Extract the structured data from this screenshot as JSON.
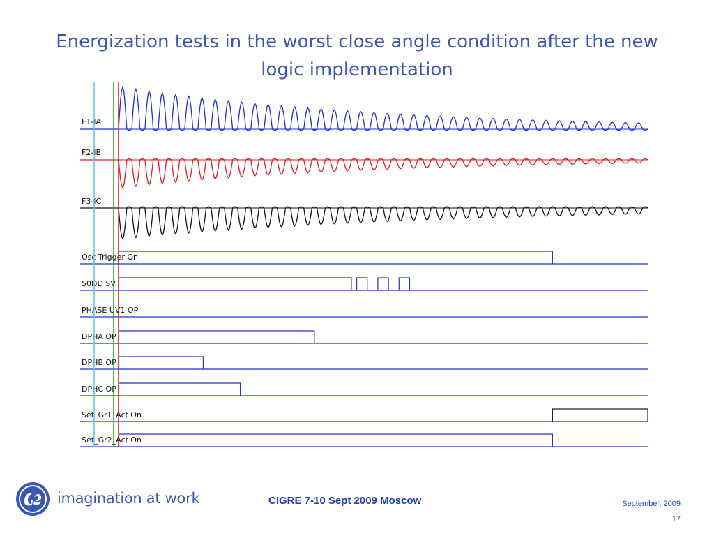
{
  "slide": {
    "title_line1": "Energization tests in the worst close angle condition after the new",
    "title_line2": "logic implementation",
    "tagline": "imagination at work",
    "footer": "CIGRE 7-10 Sept 2009 Moscow",
    "date": "September,  2009",
    "page": "17"
  },
  "colors": {
    "title": "#3a57b4",
    "digital": "#2233cc",
    "ia": "#1f2ecc",
    "ib": "#e21b1b",
    "ic": "#111111",
    "cursor_cyan": "#55c8e8",
    "cursor_green": "#11aa11",
    "cursor_red": "#ee1111"
  },
  "chart_data": {
    "type": "line",
    "title": "",
    "xlabel": "",
    "ylabel": "",
    "analog_series": [
      {
        "name": "F1-IA",
        "color": "#1f2ecc",
        "polarity": "positive",
        "peak_start": 1.0,
        "peak_end": 0.15,
        "cycles": 40
      },
      {
        "name": "F2-IB",
        "color": "#e21b1b",
        "polarity": "negative",
        "peak_start": 1.0,
        "peak_end": 0.12,
        "cycles": 40
      },
      {
        "name": "F3-IC",
        "color": "#111111",
        "polarity": "negative",
        "peak_start": 1.0,
        "peak_end": 0.2,
        "cycles": 40
      }
    ],
    "digital_channels": [
      {
        "name": "Osc Trigger  On",
        "pulses": [
          [
            0.0,
            0.82
          ]
        ]
      },
      {
        "name": "50DD SV",
        "pulses": [
          [
            0.0,
            0.44
          ],
          [
            0.45,
            0.47
          ],
          [
            0.49,
            0.51
          ],
          [
            0.53,
            0.55
          ]
        ]
      },
      {
        "name": "PHASE UV1 OP",
        "pulses": []
      },
      {
        "name": "DPHA OP",
        "pulses": [
          [
            0.0,
            0.37
          ]
        ]
      },
      {
        "name": "DPHB OP",
        "pulses": [
          [
            0.0,
            0.16
          ]
        ]
      },
      {
        "name": "DPHC OP",
        "pulses": [
          [
            0.0,
            0.23
          ]
        ]
      },
      {
        "name": "Set_Gr1_Act  On",
        "pulses": [
          [
            0.82,
            1.0
          ]
        ]
      },
      {
        "name": "Set_Gr2_Act  On",
        "pulses": [
          [
            0.0,
            0.82
          ]
        ]
      }
    ],
    "cursors": [
      "cyan",
      "green",
      "red"
    ],
    "grid": false
  }
}
